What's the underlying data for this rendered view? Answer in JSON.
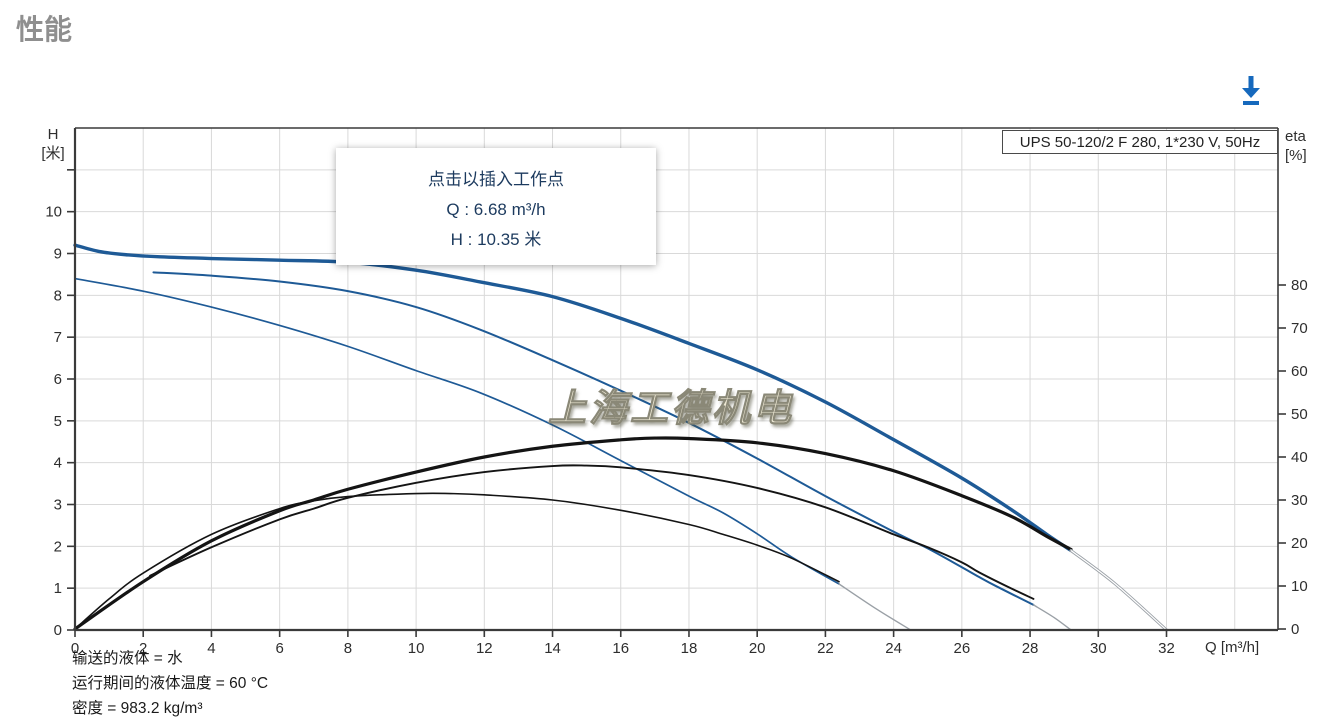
{
  "page": {
    "title": "性能"
  },
  "toolbar": {
    "download_icon": "download-arrow",
    "download_color": "#1669bd"
  },
  "chart": {
    "pump_label": "UPS 50-120/2 F 280, 1*230 V, 50Hz",
    "tooltip": {
      "line1": "点击以插入工作点",
      "line2": "Q : 6.68 m³/h",
      "line3": "H : 10.35 米"
    },
    "watermark": "上海工德机电",
    "axis_labels": {
      "h_top": "H",
      "h_unit": "[米]",
      "eta_top": "eta",
      "eta_unit": "[%]",
      "q": "Q [m³/h]"
    },
    "footer": {
      "line1": "输送的液体 = 水",
      "line2": "运行期间的液体温度 = 60 °C",
      "line3": "密度 = 983.2 kg/m³"
    }
  },
  "chart_data": {
    "type": "line",
    "title": "UPS 50-120/2 F 280, 1*230 V, 50Hz",
    "x_axis": {
      "label": "Q [m³/h]",
      "min": 0,
      "max": 35.3,
      "tick_step": 2,
      "tick_max": 32
    },
    "y_left": {
      "label": "H [米]",
      "min": 0,
      "max": 12,
      "tick_step": 1,
      "label_max": 10
    },
    "y_right": {
      "label": "eta [%]",
      "min": 0,
      "max": 116,
      "tick_step": 10,
      "tick_max": 80
    },
    "grid": true,
    "legend_position": "none",
    "colors": {
      "head": "#1e5a96",
      "eta": "#141414",
      "extension": "#9aa0a6",
      "grid": "#d9d9d9",
      "axis": "#3a3a3a"
    },
    "series": [
      {
        "name": "head-speed3",
        "axis": "H",
        "role": "head",
        "width": 3.4,
        "points": [
          [
            0,
            9.2
          ],
          [
            0.7,
            9.05
          ],
          [
            1.5,
            8.97
          ],
          [
            2.5,
            8.92
          ],
          [
            4,
            8.88
          ],
          [
            6,
            8.84
          ],
          [
            8,
            8.79
          ],
          [
            10,
            8.6
          ],
          [
            11.88,
            8.32
          ],
          [
            14,
            7.97
          ],
          [
            16,
            7.45
          ],
          [
            18,
            6.85
          ],
          [
            20,
            6.22
          ],
          [
            22,
            5.45
          ],
          [
            24,
            4.55
          ],
          [
            26,
            3.63
          ],
          [
            27.5,
            2.85
          ],
          [
            28.5,
            2.28
          ],
          [
            29.2,
            1.9
          ]
        ]
      },
      {
        "name": "head-speed2",
        "axis": "H",
        "role": "head",
        "width": 2,
        "points": [
          [
            2.3,
            8.55
          ],
          [
            4,
            8.47
          ],
          [
            6,
            8.33
          ],
          [
            8,
            8.1
          ],
          [
            10,
            7.72
          ],
          [
            11.88,
            7.18
          ],
          [
            14,
            6.45
          ],
          [
            16,
            5.72
          ],
          [
            18,
            4.95
          ],
          [
            20,
            4.1
          ],
          [
            22,
            3.2
          ],
          [
            24,
            2.35
          ],
          [
            25,
            1.95
          ],
          [
            26,
            1.5
          ],
          [
            26.5,
            1.27
          ],
          [
            27,
            1.05
          ],
          [
            28.1,
            0.6
          ]
        ]
      },
      {
        "name": "head-speed1",
        "axis": "H",
        "role": "head",
        "width": 1.7,
        "points": [
          [
            0,
            8.4
          ],
          [
            2,
            8.1
          ],
          [
            4,
            7.72
          ],
          [
            6,
            7.28
          ],
          [
            8,
            6.78
          ],
          [
            10,
            6.2
          ],
          [
            11.88,
            5.67
          ],
          [
            14,
            4.9
          ],
          [
            16,
            4.05
          ],
          [
            18,
            3.2
          ],
          [
            19,
            2.8
          ],
          [
            20,
            2.3
          ],
          [
            21,
            1.75
          ],
          [
            22.4,
            1.1
          ]
        ]
      },
      {
        "name": "eta-speed3",
        "axis": "eta",
        "role": "eta",
        "width": 3.2,
        "points": [
          [
            0,
            0
          ],
          [
            2,
            11
          ],
          [
            4,
            20.5
          ],
          [
            6,
            27.5
          ],
          [
            7,
            30
          ],
          [
            8,
            32.5
          ],
          [
            10,
            36.5
          ],
          [
            12,
            40
          ],
          [
            14,
            42.5
          ],
          [
            16,
            44
          ],
          [
            17,
            44.4
          ],
          [
            18,
            44.3
          ],
          [
            20,
            43.3
          ],
          [
            22,
            40.8
          ],
          [
            24,
            36.8
          ],
          [
            26,
            31
          ],
          [
            27.5,
            26
          ],
          [
            28.5,
            21.5
          ],
          [
            29.2,
            18.5
          ]
        ]
      },
      {
        "name": "eta-speed2",
        "axis": "eta",
        "role": "eta",
        "width": 1.9,
        "points": [
          [
            2.2,
            12.4
          ],
          [
            4,
            19
          ],
          [
            6,
            25.5
          ],
          [
            7,
            28
          ],
          [
            8,
            30.5
          ],
          [
            10,
            34
          ],
          [
            12,
            36.5
          ],
          [
            14,
            37.9
          ],
          [
            15,
            38
          ],
          [
            16,
            37.6
          ],
          [
            18,
            35.8
          ],
          [
            20,
            32.8
          ],
          [
            22,
            28.3
          ],
          [
            24,
            22
          ],
          [
            25,
            19
          ],
          [
            26,
            15.5
          ],
          [
            26.5,
            13.2
          ],
          [
            27.3,
            10
          ],
          [
            28.1,
            7
          ]
        ]
      },
      {
        "name": "eta-speed1",
        "axis": "eta",
        "role": "eta",
        "width": 1.6,
        "points": [
          [
            0,
            0
          ],
          [
            1,
            7
          ],
          [
            2,
            13
          ],
          [
            4,
            22
          ],
          [
            6,
            28
          ],
          [
            7,
            29.8
          ],
          [
            8,
            30.8
          ],
          [
            10,
            31.5
          ],
          [
            11,
            31.5
          ],
          [
            12,
            31.2
          ],
          [
            14,
            30
          ],
          [
            16,
            27.6
          ],
          [
            18,
            24.3
          ],
          [
            19,
            22
          ],
          [
            20,
            19.5
          ],
          [
            21,
            16.5
          ],
          [
            22.4,
            11
          ]
        ]
      },
      {
        "name": "extension-speed3",
        "axis": "H",
        "role": "extension",
        "width": 3,
        "hollow": true,
        "points": [
          [
            29.2,
            1.9
          ],
          [
            30.5,
            1.1
          ],
          [
            32,
            0
          ]
        ]
      },
      {
        "name": "extension-speed2",
        "axis": "H",
        "role": "extension",
        "width": 1.4,
        "points": [
          [
            28.1,
            0.6
          ],
          [
            28.7,
            0.3
          ],
          [
            29.2,
            0
          ]
        ]
      },
      {
        "name": "extension-speed1",
        "axis": "H",
        "role": "extension",
        "width": 1.4,
        "points": [
          [
            22.4,
            1.1
          ],
          [
            23.5,
            0.5
          ],
          [
            24.5,
            0
          ]
        ]
      }
    ],
    "working_point_hint": {
      "Q": "6.68 m³/h",
      "H": "10.35 米"
    },
    "conditions": [
      "输送的液体 = 水",
      "运行期间的液体温度 = 60 °C",
      "密度 = 983.2 kg/m³"
    ]
  }
}
